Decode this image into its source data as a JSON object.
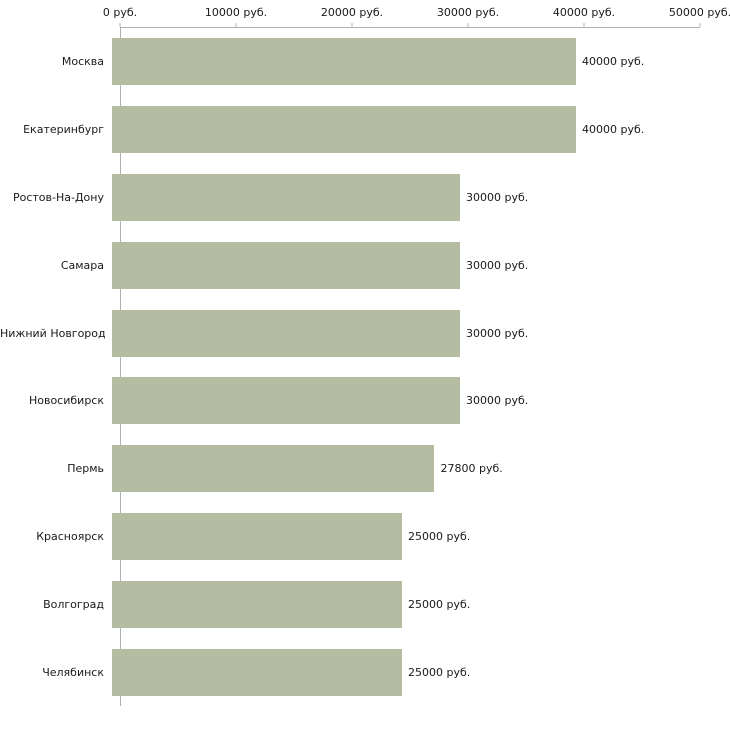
{
  "chart_data": {
    "type": "bar",
    "orientation": "horizontal",
    "title": "",
    "xlabel": "",
    "ylabel": "",
    "categories": [
      "Москва",
      "Екатеринбург",
      "Ростов-На-Дону",
      "Самара",
      "Нижний Новгород",
      "Новосибирск",
      "Пермь",
      "Красноярск",
      "Волгоград",
      "Челябинск"
    ],
    "values": [
      40000,
      40000,
      30000,
      30000,
      30000,
      30000,
      27800,
      25000,
      25000,
      25000
    ],
    "value_labels": [
      "40000 руб.",
      "40000 руб.",
      "30000 руб.",
      "30000 руб.",
      "30000 руб.",
      "30000 руб.",
      "27800 руб.",
      "25000 руб.",
      "25000 руб.",
      "25000 руб."
    ],
    "xlim": [
      0,
      50000
    ],
    "x_ticks": [
      0,
      10000,
      20000,
      30000,
      40000,
      50000
    ],
    "x_tick_labels": [
      "0 руб.",
      "10000 руб.",
      "20000 руб.",
      "30000 руб.",
      "40000 руб.",
      "50000 руб."
    ],
    "grid": false,
    "legend": null,
    "bar_color": "#b4bca2",
    "axis_color": "#b0b0b0",
    "text_color": "#1a1a1a",
    "background_color": "#ffffff"
  }
}
